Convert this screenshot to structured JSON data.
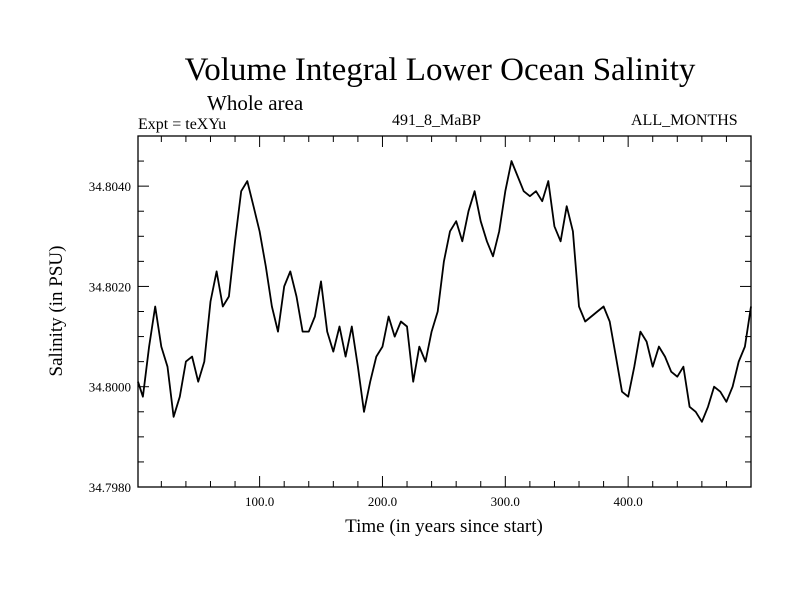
{
  "chart_data": {
    "type": "line",
    "title": "Volume Integral Lower Ocean Salinity",
    "subtitle": "Whole area",
    "annotations": {
      "expt": "Expt = teXYu",
      "run_code": "491_8_MaBP",
      "months": "ALL_MONTHS"
    },
    "xlabel": "Time (in years since start)",
    "ylabel": "Salinity (in PSU)",
    "xlim": [
      1,
      500
    ],
    "ylim": [
      34.798,
      34.805
    ],
    "xticks": [
      100,
      200,
      300,
      400
    ],
    "xtick_labels": [
      "100.0",
      "200.0",
      "300.0",
      "400.0"
    ],
    "yticks": [
      34.798,
      34.8,
      34.802,
      34.804
    ],
    "ytick_labels": [
      "34.7980",
      "34.8000",
      "34.8020",
      "34.8040"
    ],
    "grid": false,
    "series": [
      {
        "x": [
          1,
          5,
          10,
          15,
          20,
          25,
          30,
          35,
          40,
          45,
          50,
          55,
          60,
          65,
          70,
          75,
          80,
          85,
          90,
          95,
          100,
          105,
          110,
          115,
          120,
          125,
          130,
          135,
          140,
          145,
          150,
          155,
          160,
          165,
          170,
          175,
          180,
          185,
          190,
          195,
          200,
          205,
          210,
          215,
          220,
          225,
          230,
          235,
          240,
          245,
          250,
          255,
          260,
          265,
          270,
          275,
          280,
          285,
          290,
          295,
          300,
          305,
          310,
          315,
          320,
          325,
          330,
          335,
          340,
          345,
          350,
          355,
          360,
          365,
          370,
          375,
          380,
          385,
          390,
          395,
          400,
          405,
          410,
          415,
          420,
          425,
          430,
          435,
          440,
          445,
          450,
          455,
          460,
          465,
          470,
          475,
          480,
          485,
          490,
          495,
          500
        ],
        "y": [
          34.8001,
          34.7998,
          34.8008,
          34.8016,
          34.8008,
          34.8004,
          34.7994,
          34.7998,
          34.8005,
          34.8006,
          34.8001,
          34.8005,
          34.8017,
          34.8023,
          34.8016,
          34.8018,
          34.8029,
          34.8039,
          34.8041,
          34.8036,
          34.8031,
          34.8024,
          34.8016,
          34.8011,
          34.802,
          34.8023,
          34.8018,
          34.8011,
          34.8011,
          34.8014,
          34.8021,
          34.8011,
          34.8007,
          34.8012,
          34.8006,
          34.8012,
          34.8004,
          34.7995,
          34.8001,
          34.8006,
          34.8008,
          34.8014,
          34.801,
          34.8013,
          34.8012,
          34.8001,
          34.8008,
          34.8005,
          34.8011,
          34.8015,
          34.8025,
          34.8031,
          34.8033,
          34.8029,
          34.8035,
          34.8039,
          34.8033,
          34.8029,
          34.8026,
          34.8031,
          34.8039,
          34.8045,
          34.8042,
          34.8039,
          34.8038,
          34.8039,
          34.8037,
          34.8041,
          34.8032,
          34.8029,
          34.8036,
          34.8031,
          34.8016,
          34.8013,
          34.8014,
          34.8015,
          34.8016,
          34.8013,
          34.8006,
          34.7999,
          34.7998,
          34.8004,
          34.8011,
          34.8009,
          34.8004,
          34.8008,
          34.8006,
          34.8003,
          34.8002,
          34.8004,
          34.7996,
          34.7995,
          34.7993,
          34.7996,
          34.8,
          34.7999,
          34.7997,
          34.8,
          34.8005,
          34.8008,
          34.8016
        ]
      }
    ]
  }
}
